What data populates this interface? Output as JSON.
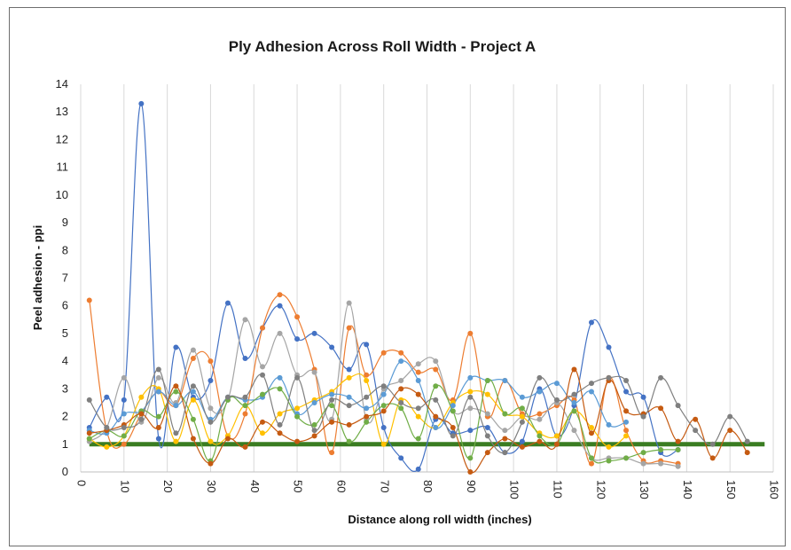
{
  "chart_data": {
    "type": "line",
    "title": "Ply Adhesion Across Roll Width - Project A",
    "xlabel": "Distance along roll width (inches)",
    "ylabel": "Peel adhesion - ppi",
    "xlim": [
      0,
      160
    ],
    "ylim": [
      0,
      14
    ],
    "xticks": [
      "0",
      "10",
      "20",
      "30",
      "40",
      "50",
      "60",
      "70",
      "80",
      "90",
      "100",
      "110",
      "120",
      "130",
      "140",
      "150",
      "160"
    ],
    "yticks": [
      "0",
      "1",
      "2",
      "3",
      "4",
      "5",
      "6",
      "7",
      "8",
      "9",
      "10",
      "11",
      "12",
      "13",
      "14"
    ],
    "grid": "vertical",
    "legend": "none",
    "series": [
      {
        "color": "#4472c4",
        "points": [
          [
            2,
            1.6
          ],
          [
            6,
            2.7
          ],
          [
            10,
            2.6
          ],
          [
            14,
            13.3
          ],
          [
            18,
            1.2
          ],
          [
            22,
            4.5
          ],
          [
            26,
            2.7
          ],
          [
            30,
            3.3
          ],
          [
            34,
            6.1
          ],
          [
            38,
            4.1
          ],
          [
            42,
            5.2
          ],
          [
            46,
            6.0
          ],
          [
            50,
            4.8
          ],
          [
            54,
            5.0
          ],
          [
            58,
            4.5
          ],
          [
            62,
            3.7
          ],
          [
            66,
            4.6
          ],
          [
            70,
            1.6
          ],
          [
            74,
            0.5
          ],
          [
            78,
            0.1
          ],
          [
            82,
            1.9
          ],
          [
            86,
            1.4
          ],
          [
            90,
            1.5
          ],
          [
            94,
            1.6
          ],
          [
            98,
            0.7
          ],
          [
            102,
            1.1
          ],
          [
            106,
            3.0
          ],
          [
            110,
            1.3
          ],
          [
            114,
            2.4
          ],
          [
            118,
            5.4
          ],
          [
            122,
            4.5
          ],
          [
            126,
            2.9
          ],
          [
            130,
            2.7
          ],
          [
            134,
            0.7
          ],
          [
            138,
            0.8
          ]
        ]
      },
      {
        "color": "#ed7d31",
        "points": [
          [
            2,
            6.2
          ],
          [
            6,
            1.5
          ],
          [
            10,
            1.0
          ],
          [
            14,
            2.1
          ],
          [
            18,
            2.9
          ],
          [
            22,
            2.4
          ],
          [
            26,
            4.1
          ],
          [
            30,
            4.0
          ],
          [
            34,
            1.3
          ],
          [
            38,
            2.1
          ],
          [
            42,
            5.2
          ],
          [
            46,
            6.4
          ],
          [
            50,
            5.6
          ],
          [
            54,
            3.7
          ],
          [
            58,
            0.7
          ],
          [
            62,
            5.2
          ],
          [
            66,
            3.5
          ],
          [
            70,
            4.3
          ],
          [
            74,
            4.3
          ],
          [
            78,
            3.6
          ],
          [
            82,
            3.7
          ],
          [
            86,
            2.6
          ],
          [
            90,
            5.0
          ],
          [
            94,
            2.0
          ],
          [
            98,
            3.3
          ],
          [
            102,
            2.1
          ],
          [
            106,
            2.1
          ],
          [
            110,
            2.4
          ],
          [
            114,
            2.6
          ],
          [
            118,
            0.3
          ],
          [
            122,
            3.4
          ],
          [
            126,
            1.5
          ],
          [
            130,
            0.4
          ],
          [
            134,
            0.4
          ],
          [
            138,
            0.3
          ]
        ]
      },
      {
        "color": "#a5a5a5",
        "points": [
          [
            2,
            1.1
          ],
          [
            6,
            1.6
          ],
          [
            10,
            3.4
          ],
          [
            14,
            1.8
          ],
          [
            18,
            3.4
          ],
          [
            22,
            2.5
          ],
          [
            26,
            4.4
          ],
          [
            30,
            2.3
          ],
          [
            34,
            2.6
          ],
          [
            38,
            5.5
          ],
          [
            42,
            3.8
          ],
          [
            46,
            5.0
          ],
          [
            50,
            3.5
          ],
          [
            54,
            3.6
          ],
          [
            58,
            1.9
          ],
          [
            62,
            6.1
          ],
          [
            66,
            1.9
          ],
          [
            70,
            3.0
          ],
          [
            74,
            3.3
          ],
          [
            78,
            3.9
          ],
          [
            82,
            4.0
          ],
          [
            86,
            2.2
          ],
          [
            90,
            2.3
          ],
          [
            94,
            2.1
          ],
          [
            98,
            1.5
          ],
          [
            102,
            2.0
          ],
          [
            106,
            1.9
          ],
          [
            110,
            2.5
          ],
          [
            114,
            1.5
          ],
          [
            118,
            0.5
          ],
          [
            122,
            0.5
          ],
          [
            126,
            0.5
          ],
          [
            130,
            0.3
          ],
          [
            134,
            0.3
          ],
          [
            138,
            0.2
          ]
        ]
      },
      {
        "color": "#ffc000",
        "points": [
          [
            2,
            1.2
          ],
          [
            6,
            0.9
          ],
          [
            10,
            1.3
          ],
          [
            14,
            2.7
          ],
          [
            18,
            3.0
          ],
          [
            22,
            1.1
          ],
          [
            26,
            2.6
          ],
          [
            30,
            1.1
          ],
          [
            34,
            1.3
          ],
          [
            38,
            2.4
          ],
          [
            42,
            1.4
          ],
          [
            46,
            2.1
          ],
          [
            50,
            2.3
          ],
          [
            54,
            2.6
          ],
          [
            58,
            2.9
          ],
          [
            62,
            3.4
          ],
          [
            66,
            3.3
          ],
          [
            70,
            1.0
          ],
          [
            74,
            2.6
          ],
          [
            78,
            2.0
          ],
          [
            82,
            1.6
          ],
          [
            86,
            2.5
          ],
          [
            90,
            2.9
          ],
          [
            94,
            2.8
          ],
          [
            98,
            2.1
          ],
          [
            102,
            2.0
          ],
          [
            106,
            1.4
          ],
          [
            110,
            1.3
          ],
          [
            114,
            2.2
          ],
          [
            118,
            1.6
          ],
          [
            122,
            0.9
          ],
          [
            126,
            1.3
          ]
        ]
      },
      {
        "color": "#5b9bd5",
        "points": [
          [
            2,
            1.5
          ],
          [
            6,
            1.4
          ],
          [
            10,
            2.1
          ],
          [
            14,
            2.2
          ],
          [
            18,
            2.9
          ],
          [
            22,
            2.4
          ],
          [
            26,
            2.9
          ],
          [
            30,
            1.9
          ],
          [
            34,
            2.7
          ],
          [
            38,
            2.6
          ],
          [
            42,
            2.7
          ],
          [
            46,
            3.4
          ],
          [
            50,
            2.1
          ],
          [
            54,
            2.5
          ],
          [
            58,
            2.8
          ],
          [
            62,
            2.7
          ],
          [
            66,
            2.3
          ],
          [
            70,
            2.8
          ],
          [
            74,
            4.0
          ],
          [
            78,
            3.3
          ],
          [
            82,
            1.6
          ],
          [
            86,
            2.4
          ],
          [
            90,
            3.4
          ],
          [
            94,
            3.3
          ],
          [
            98,
            3.3
          ],
          [
            102,
            2.7
          ],
          [
            106,
            2.9
          ],
          [
            110,
            3.2
          ],
          [
            114,
            2.5
          ],
          [
            118,
            2.9
          ],
          [
            122,
            1.7
          ],
          [
            126,
            1.8
          ]
        ]
      },
      {
        "color": "#70ad47",
        "points": [
          [
            2,
            1.2
          ],
          [
            6,
            1.5
          ],
          [
            10,
            1.3
          ],
          [
            14,
            2.2
          ],
          [
            18,
            2.0
          ],
          [
            22,
            2.9
          ],
          [
            26,
            1.9
          ],
          [
            30,
            0.4
          ],
          [
            34,
            2.6
          ],
          [
            38,
            2.4
          ],
          [
            42,
            2.8
          ],
          [
            46,
            3.0
          ],
          [
            50,
            2.0
          ],
          [
            54,
            1.7
          ],
          [
            58,
            2.4
          ],
          [
            62,
            1.1
          ],
          [
            66,
            1.8
          ],
          [
            70,
            2.4
          ],
          [
            74,
            2.3
          ],
          [
            78,
            1.2
          ],
          [
            82,
            3.1
          ],
          [
            86,
            2.2
          ],
          [
            90,
            0.5
          ],
          [
            94,
            3.3
          ],
          [
            98,
            2.1
          ],
          [
            102,
            2.3
          ],
          [
            106,
            1.3
          ],
          [
            110,
            1.0
          ],
          [
            114,
            2.2
          ],
          [
            118,
            0.5
          ],
          [
            122,
            0.4
          ],
          [
            126,
            0.5
          ],
          [
            130,
            0.7
          ],
          [
            134,
            0.8
          ],
          [
            138,
            0.8
          ]
        ]
      },
      {
        "color": "#c55a11",
        "points": [
          [
            2,
            1.4
          ],
          [
            6,
            1.5
          ],
          [
            10,
            1.7
          ],
          [
            14,
            2.1
          ],
          [
            18,
            1.6
          ],
          [
            22,
            3.1
          ],
          [
            26,
            1.2
          ],
          [
            30,
            0.3
          ],
          [
            34,
            1.2
          ],
          [
            38,
            0.9
          ],
          [
            42,
            1.8
          ],
          [
            46,
            1.4
          ],
          [
            50,
            1.1
          ],
          [
            54,
            1.3
          ],
          [
            58,
            1.8
          ],
          [
            62,
            1.7
          ],
          [
            66,
            2.0
          ],
          [
            70,
            2.2
          ],
          [
            74,
            3.0
          ],
          [
            78,
            2.8
          ],
          [
            82,
            2.0
          ],
          [
            86,
            1.6
          ],
          [
            90,
            0.0
          ],
          [
            94,
            0.7
          ],
          [
            98,
            1.2
          ],
          [
            102,
            0.9
          ],
          [
            106,
            1.1
          ],
          [
            110,
            1.0
          ],
          [
            114,
            3.7
          ],
          [
            118,
            1.4
          ],
          [
            122,
            3.3
          ],
          [
            126,
            2.2
          ],
          [
            130,
            2.1
          ],
          [
            134,
            2.3
          ],
          [
            138,
            1.1
          ],
          [
            142,
            1.9
          ],
          [
            146,
            0.5
          ],
          [
            150,
            1.5
          ],
          [
            154,
            0.7
          ]
        ]
      },
      {
        "color": "#7f7f7f",
        "points": [
          [
            2,
            2.6
          ],
          [
            6,
            1.6
          ],
          [
            10,
            1.6
          ],
          [
            14,
            1.9
          ],
          [
            18,
            3.7
          ],
          [
            22,
            1.4
          ],
          [
            26,
            3.1
          ],
          [
            30,
            1.8
          ],
          [
            34,
            2.7
          ],
          [
            38,
            2.7
          ],
          [
            42,
            3.5
          ],
          [
            46,
            1.7
          ],
          [
            50,
            3.4
          ],
          [
            54,
            1.5
          ],
          [
            58,
            2.6
          ],
          [
            62,
            2.4
          ],
          [
            66,
            2.7
          ],
          [
            70,
            3.1
          ],
          [
            74,
            2.5
          ],
          [
            78,
            2.3
          ],
          [
            82,
            2.6
          ],
          [
            86,
            1.3
          ],
          [
            90,
            2.7
          ],
          [
            94,
            1.3
          ],
          [
            98,
            0.7
          ],
          [
            102,
            1.8
          ],
          [
            106,
            3.4
          ],
          [
            110,
            2.6
          ],
          [
            114,
            2.8
          ],
          [
            118,
            3.2
          ],
          [
            122,
            3.4
          ],
          [
            126,
            3.3
          ],
          [
            130,
            2.0
          ],
          [
            134,
            3.4
          ],
          [
            138,
            2.4
          ],
          [
            142,
            1.5
          ],
          [
            146,
            1.0
          ],
          [
            150,
            2.0
          ],
          [
            154,
            1.1
          ]
        ]
      }
    ],
    "reference_line": {
      "color": "#3a7d22",
      "y": 1.0,
      "x": [
        2,
        158
      ]
    }
  }
}
